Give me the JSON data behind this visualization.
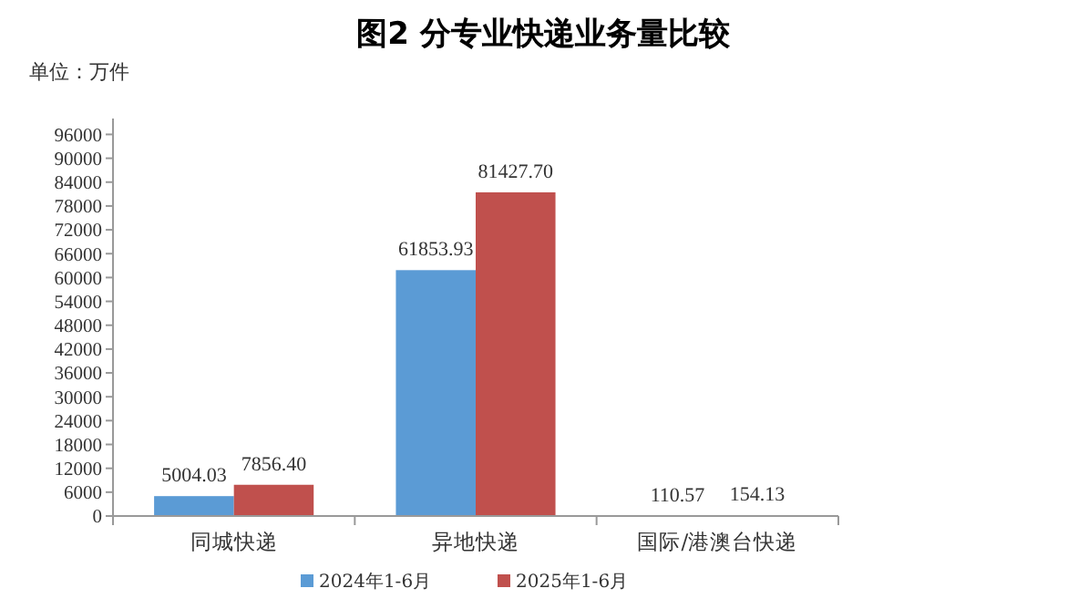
{
  "chart_data": {
    "type": "bar",
    "title": "图2 分专业快递业务量比较",
    "ylabel": "单位：万件",
    "categories": [
      "同城快递",
      "异地快递",
      "国际/港澳台快递"
    ],
    "series": [
      {
        "name": "2024年1-6月",
        "color": "#5b9bd5",
        "values": [
          5004.03,
          61853.93,
          110.57
        ],
        "value_labels": [
          "5004.03",
          "61853.93",
          "110.57"
        ]
      },
      {
        "name": "2025年1-6月",
        "color": "#c0504d",
        "values": [
          7856.4,
          81427.7,
          154.13
        ],
        "value_labels": [
          "7856.40",
          "81427.70",
          "154.13"
        ]
      }
    ],
    "ylim": [
      0,
      100000
    ],
    "yticks": [
      0,
      6000,
      12000,
      18000,
      24000,
      30000,
      36000,
      42000,
      48000,
      54000,
      60000,
      66000,
      72000,
      78000,
      84000,
      90000,
      96000
    ],
    "grid": false,
    "legend": "bottom"
  }
}
